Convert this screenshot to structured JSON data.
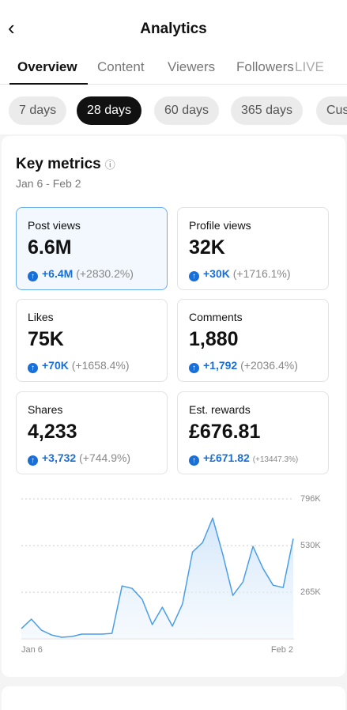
{
  "header": {
    "title": "Analytics"
  },
  "tabs": [
    "Overview",
    "Content",
    "Viewers",
    "Followers",
    "LIVE"
  ],
  "periods": [
    "7 days",
    "28 days",
    "60 days",
    "365 days",
    "Custom"
  ],
  "key_metrics": {
    "title": "Key metrics",
    "date_range": "Jan 6 - Feb 2",
    "cards": [
      {
        "label": "Post views",
        "value": "6.6M",
        "change": "+6.4M",
        "percent": "(+2830.2%)"
      },
      {
        "label": "Profile views",
        "value": "32K",
        "change": "+30K",
        "percent": "(+1716.1%)"
      },
      {
        "label": "Likes",
        "value": "75K",
        "change": "+70K",
        "percent": "(+1658.4%)"
      },
      {
        "label": "Comments",
        "value": "1,880",
        "change": "+1,792",
        "percent": "(+2036.4%)"
      },
      {
        "label": "Shares",
        "value": "4,233",
        "change": "+3,732",
        "percent": "(+744.9%)"
      },
      {
        "label": "Est. rewards",
        "value": "£676.81",
        "change": "+£671.82",
        "percent": "(+13447.3%)"
      }
    ]
  },
  "chart_data": {
    "type": "line",
    "categories": [
      "Jan 6",
      null,
      null,
      null,
      null,
      null,
      null,
      null,
      null,
      null,
      null,
      null,
      null,
      null,
      null,
      null,
      null,
      null,
      null,
      null,
      null,
      null,
      null,
      null,
      null,
      null,
      null,
      "Feb 2"
    ],
    "series": [
      {
        "name": "Post views",
        "color": "#4a9ee8",
        "values": [
          58000,
          112000,
          49000,
          22000,
          9000,
          13000,
          27000,
          27000,
          27000,
          31000,
          301000,
          287000,
          225000,
          81000,
          180000,
          72000,
          198000,
          494000,
          548000,
          687000,
          481000,
          247000,
          323000,
          526000,
          400000,
          305000,
          292000,
          570000
        ]
      }
    ],
    "ylim": [
      0,
      796000
    ],
    "yticks": [
      {
        "value": 265000,
        "label": "265K"
      },
      {
        "value": 530000,
        "label": "530K"
      },
      {
        "value": 796000,
        "label": "796K"
      }
    ],
    "grid": true
  }
}
